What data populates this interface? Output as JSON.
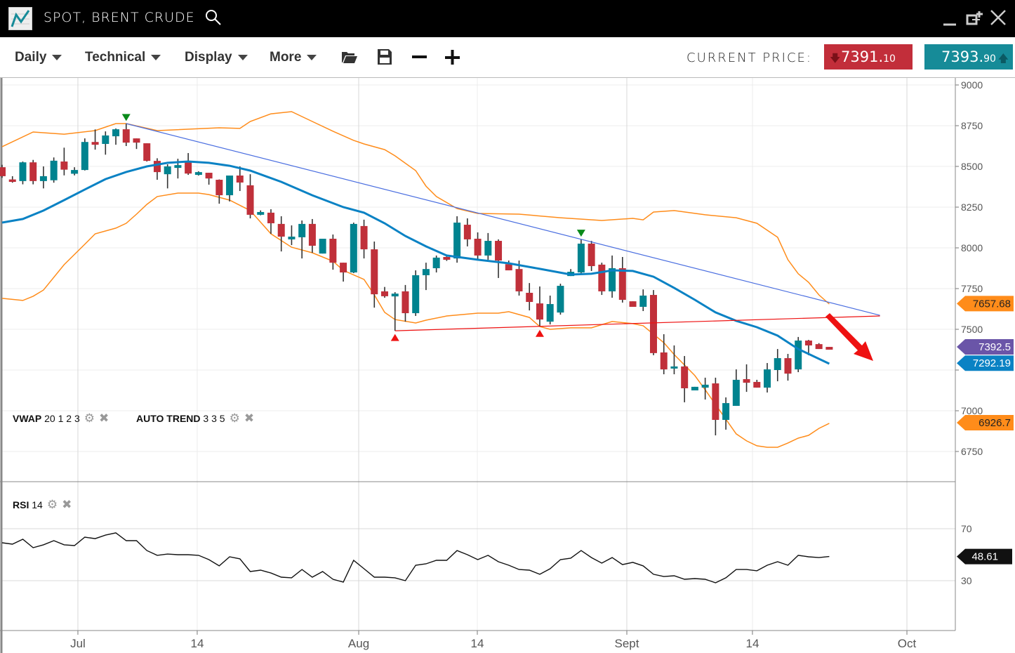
{
  "window": {
    "title": "SPOT, BRENT CRUDE",
    "icons": [
      "chart-logo-icon",
      "search-icon",
      "minimize-icon",
      "popout-icon",
      "close-icon"
    ]
  },
  "toolbar": {
    "menus": [
      {
        "label": "Daily"
      },
      {
        "label": "Technical"
      },
      {
        "label": "Display"
      },
      {
        "label": "More"
      }
    ],
    "icons": [
      "folder-open-icon",
      "save-icon",
      "zoom-out-icon",
      "zoom-in-icon"
    ],
    "current_price_label": "CURRENT PRICE:",
    "bid": {
      "main": "7391.",
      "decimals": "10",
      "direction": "down",
      "color": "#c22e3a"
    },
    "ask": {
      "main": "7393.",
      "decimals": "90",
      "direction": "up",
      "color": "#168b98"
    }
  },
  "legends": {
    "vwap": {
      "name": "VWAP",
      "params": "20 1 2 3"
    },
    "auto_trend": {
      "name": "AUTO TREND",
      "params": "3 3 5"
    },
    "rsi": {
      "name": "RSI",
      "params": "14"
    }
  },
  "chart_data": [
    {
      "type": "candlestick",
      "y_ticks": [
        "9000",
        "8750",
        "8500",
        "8250",
        "8000",
        "7750",
        "7500",
        "7250",
        "7000",
        "6750"
      ],
      "ylim": [
        6750,
        9000
      ],
      "x_ticks": [
        "Jul",
        "14",
        "Aug",
        "14",
        "Sept",
        "14",
        "Oct"
      ],
      "grid": true,
      "colors": {
        "up": "#00838f",
        "down": "#c0303a",
        "vwap": "#0a82c4",
        "bands": "#ff8c1a",
        "trend_resistance": "#4a6ee0",
        "trend_support": "#ee1111"
      },
      "candles_ohlc": [
        [
          8495,
          8510,
          8430,
          8440
        ],
        [
          8420,
          8440,
          8400,
          8405
        ],
        [
          8410,
          8530,
          8390,
          8525
        ],
        [
          8525,
          8540,
          8390,
          8410
        ],
        [
          8410,
          8500,
          8365,
          8440
        ],
        [
          8415,
          8555,
          8400,
          8535
        ],
        [
          8530,
          8615,
          8445,
          8480
        ],
        [
          8455,
          8495,
          8445,
          8478
        ],
        [
          8478,
          8672,
          8475,
          8650
        ],
        [
          8650,
          8727,
          8603,
          8633
        ],
        [
          8638,
          8715,
          8572,
          8690
        ],
        [
          8685,
          8733,
          8633,
          8728
        ],
        [
          8728,
          8763,
          8625,
          8646
        ],
        [
          8672,
          8672,
          8607,
          8646
        ],
        [
          8642,
          8642,
          8530,
          8534
        ],
        [
          8534,
          8550,
          8418,
          8465
        ],
        [
          8452,
          8513,
          8365,
          8500
        ],
        [
          8491,
          8547,
          8426,
          8508
        ],
        [
          8525,
          8582,
          8448,
          8456
        ],
        [
          8448,
          8470,
          8444,
          8465
        ],
        [
          8461,
          8461,
          8388,
          8426
        ],
        [
          8418,
          8420,
          8271,
          8323
        ],
        [
          8323,
          8444,
          8285,
          8444
        ],
        [
          8444,
          8500,
          8349,
          8401
        ],
        [
          8384,
          8452,
          8181,
          8203
        ],
        [
          8203,
          8230,
          8200,
          8220
        ],
        [
          8216,
          8237,
          8086,
          8151
        ],
        [
          8147,
          8194,
          7978,
          8069
        ],
        [
          8052,
          8138,
          8017,
          8069
        ],
        [
          8065,
          8168,
          7935,
          8147
        ],
        [
          8147,
          8177,
          7970,
          8013
        ],
        [
          7965,
          8056,
          7965,
          8056
        ],
        [
          8056,
          8082,
          7866,
          7909
        ],
        [
          7909,
          7909,
          7793,
          7849
        ],
        [
          7849,
          8155,
          7845,
          8147
        ],
        [
          8134,
          8173,
          7935,
          7991
        ],
        [
          7991,
          8039,
          7633,
          7715
        ],
        [
          7733,
          7760,
          7694,
          7703
        ],
        [
          7702,
          7728,
          7491,
          7719
        ],
        [
          7733,
          7772,
          7547,
          7599
        ],
        [
          7599,
          7862,
          7582,
          7832
        ],
        [
          7832,
          7909,
          7741,
          7870
        ],
        [
          7875,
          7953,
          7849,
          7940
        ],
        [
          7944,
          7952,
          7920,
          7927
        ],
        [
          7935,
          8194,
          7909,
          8155
        ],
        [
          8142,
          8181,
          8009,
          8052
        ],
        [
          8056,
          8095,
          7927,
          7953
        ],
        [
          7953,
          8091,
          7927,
          8043
        ],
        [
          8043,
          8052,
          7815,
          7922
        ],
        [
          7900,
          7922,
          7862,
          7862
        ],
        [
          7870,
          7922,
          7707,
          7733
        ],
        [
          7724,
          7784,
          7616,
          7668
        ],
        [
          7659,
          7763,
          7517,
          7560
        ],
        [
          7547,
          7707,
          7530,
          7655
        ],
        [
          7603,
          7780,
          7590,
          7767
        ],
        [
          7827,
          7870,
          7827,
          7853
        ],
        [
          7849,
          8052,
          7836,
          8026
        ],
        [
          8026,
          8043,
          7858,
          7888
        ],
        [
          7897,
          7909,
          7711,
          7733
        ],
        [
          7733,
          7953,
          7694,
          7875
        ],
        [
          7875,
          7944,
          7664,
          7681
        ],
        [
          7672,
          7672,
          7638,
          7638
        ],
        [
          7638,
          7745,
          7612,
          7707
        ],
        [
          7711,
          7741,
          7341,
          7354
        ],
        [
          7358,
          7470,
          7224,
          7254
        ],
        [
          7259,
          7401,
          7224,
          7272
        ],
        [
          7272,
          7336,
          7052,
          7138
        ],
        [
          7125,
          7147,
          7125,
          7147
        ],
        [
          7142,
          7203,
          7069,
          7160
        ],
        [
          7168,
          7203,
          6849,
          6944
        ],
        [
          6944,
          7082,
          6884,
          7047
        ],
        [
          7030,
          7254,
          7030,
          7190
        ],
        [
          7194,
          7285,
          7116,
          7172
        ],
        [
          7177,
          7190,
          7142,
          7142
        ],
        [
          7142,
          7293,
          7112,
          7254
        ],
        [
          7250,
          7379,
          7181,
          7323
        ],
        [
          7323,
          7349,
          7185,
          7228
        ],
        [
          7254,
          7453,
          7237,
          7431
        ],
        [
          7431,
          7435,
          7341,
          7401
        ],
        [
          7409,
          7415,
          7379,
          7379
        ],
        [
          7392,
          7392,
          7375,
          7375
        ]
      ],
      "upper_band": [
        [
          0,
          8621
        ],
        [
          3,
          8711
        ],
        [
          6,
          8698
        ],
        [
          9,
          8720
        ],
        [
          11,
          8763
        ],
        [
          12,
          8763
        ],
        [
          15,
          8720
        ],
        [
          21,
          8737
        ],
        [
          23,
          8733
        ],
        [
          24,
          8776
        ],
        [
          26,
          8823
        ],
        [
          28,
          8836
        ],
        [
          30,
          8776
        ],
        [
          32,
          8716
        ],
        [
          34,
          8660
        ],
        [
          35,
          8638
        ],
        [
          37,
          8603
        ],
        [
          38,
          8565
        ],
        [
          40,
          8474
        ],
        [
          41,
          8379
        ],
        [
          42,
          8315
        ],
        [
          44,
          8241
        ],
        [
          46,
          8211
        ],
        [
          50,
          8207
        ],
        [
          54,
          8185
        ],
        [
          58,
          8168
        ],
        [
          61,
          8181
        ],
        [
          62,
          8172
        ],
        [
          63,
          8220
        ],
        [
          65,
          8229
        ],
        [
          68,
          8203
        ],
        [
          71,
          8185
        ],
        [
          73,
          8151
        ],
        [
          75,
          8065
        ],
        [
          76,
          7927
        ],
        [
          77,
          7841
        ],
        [
          78,
          7789
        ],
        [
          79,
          7711
        ],
        [
          80,
          7655
        ]
      ],
      "lower_band": [
        [
          0,
          7690
        ],
        [
          2,
          7677
        ],
        [
          3,
          7703
        ],
        [
          4,
          7741
        ],
        [
          6,
          7897
        ],
        [
          8,
          8022
        ],
        [
          9,
          8086
        ],
        [
          11,
          8121
        ],
        [
          12,
          8151
        ],
        [
          13,
          8207
        ],
        [
          14,
          8267
        ],
        [
          15,
          8315
        ],
        [
          17,
          8336
        ],
        [
          19,
          8336
        ],
        [
          20,
          8327
        ],
        [
          22,
          8293
        ],
        [
          24,
          8229
        ],
        [
          26,
          8086
        ],
        [
          28,
          8004
        ],
        [
          30,
          7970
        ],
        [
          32,
          7918
        ],
        [
          33,
          7862
        ],
        [
          35,
          7806
        ],
        [
          36,
          7711
        ],
        [
          37,
          7604
        ],
        [
          38,
          7560
        ],
        [
          40,
          7539
        ],
        [
          41,
          7556
        ],
        [
          43,
          7582
        ],
        [
          46,
          7599
        ],
        [
          48,
          7599
        ],
        [
          49,
          7608
        ],
        [
          51,
          7573
        ],
        [
          52,
          7517
        ],
        [
          53,
          7500
        ],
        [
          55,
          7509
        ],
        [
          57,
          7509
        ],
        [
          59,
          7548
        ],
        [
          61,
          7535
        ],
        [
          62,
          7522
        ],
        [
          64,
          7418
        ],
        [
          65,
          7345
        ],
        [
          67,
          7216
        ],
        [
          68,
          7129
        ],
        [
          70,
          6948
        ],
        [
          71,
          6858
        ],
        [
          72,
          6815
        ],
        [
          73,
          6785
        ],
        [
          74,
          6776
        ],
        [
          75,
          6776
        ],
        [
          76,
          6802
        ],
        [
          77,
          6832
        ],
        [
          78,
          6849
        ],
        [
          79,
          6892
        ],
        [
          80,
          6923
        ]
      ],
      "vwap": [
        [
          0,
          8155
        ],
        [
          2,
          8177
        ],
        [
          4,
          8229
        ],
        [
          6,
          8293
        ],
        [
          8,
          8358
        ],
        [
          10,
          8422
        ],
        [
          12,
          8466
        ],
        [
          14,
          8500
        ],
        [
          16,
          8522
        ],
        [
          18,
          8530
        ],
        [
          20,
          8522
        ],
        [
          22,
          8504
        ],
        [
          24,
          8474
        ],
        [
          27,
          8405
        ],
        [
          30,
          8323
        ],
        [
          33,
          8250
        ],
        [
          35,
          8216
        ],
        [
          37,
          8151
        ],
        [
          39,
          8073
        ],
        [
          41,
          8009
        ],
        [
          43,
          7953
        ],
        [
          46,
          7927
        ],
        [
          49,
          7905
        ],
        [
          52,
          7871
        ],
        [
          55,
          7836
        ],
        [
          57,
          7841
        ],
        [
          59,
          7862
        ],
        [
          61,
          7858
        ],
        [
          63,
          7823
        ],
        [
          65,
          7754
        ],
        [
          67,
          7681
        ],
        [
          69,
          7604
        ],
        [
          71,
          7552
        ],
        [
          73,
          7513
        ],
        [
          75,
          7461
        ],
        [
          77,
          7379
        ],
        [
          80,
          7289
        ]
      ],
      "trend_lines": [
        {
          "kind": "resistance",
          "from": [
            12,
            8763
          ],
          "to": [
            84.9,
            7586
          ]
        },
        {
          "kind": "support",
          "from": [
            38,
            7491
          ],
          "to": [
            84.9,
            7582
          ]
        }
      ],
      "pivot_markers": [
        {
          "kind": "high",
          "index": 12,
          "price": 8800
        },
        {
          "kind": "high",
          "index": 56,
          "price": 8090
        },
        {
          "kind": "low",
          "index": 38,
          "price": 7450
        },
        {
          "kind": "low",
          "index": 52,
          "price": 7475
        }
      ],
      "forecast_arrow": {
        "direction": "down",
        "color": "#ee1111"
      },
      "price_tags": [
        {
          "label": "7657.68",
          "value": 7657.68,
          "color": "#ff8c1a",
          "text_color": "#222"
        },
        {
          "label": "7392.5",
          "value": 7392.5,
          "color": "#6a55a8",
          "text_color": "#fff"
        },
        {
          "label": "7292.19",
          "value": 7292.19,
          "color": "#0a82c4",
          "text_color": "#fff"
        },
        {
          "label": "6926.7",
          "value": 6926.7,
          "color": "#ff8c1a",
          "text_color": "#222"
        }
      ]
    },
    {
      "type": "line",
      "name": "RSI",
      "y_ticks": [
        "70",
        "30"
      ],
      "values": [
        59.2,
        58.1,
        61.9,
        55.4,
        57.6,
        60.8,
        57.6,
        57.0,
        63.5,
        62.4,
        65.1,
        66.8,
        60.8,
        60.8,
        53.2,
        49.5,
        50.5,
        50.0,
        50.0,
        49.5,
        46.2,
        41.4,
        48.4,
        46.8,
        37.0,
        38.1,
        35.9,
        32.7,
        32.2,
        38.6,
        32.7,
        37.0,
        31.1,
        28.9,
        45.7,
        39.2,
        32.7,
        32.7,
        32.2,
        30.0,
        41.9,
        43.0,
        45.7,
        45.7,
        53.2,
        50.0,
        46.2,
        49.5,
        44.6,
        41.9,
        38.6,
        38.1,
        34.9,
        39.2,
        46.2,
        47.3,
        53.2,
        47.8,
        43.5,
        47.8,
        42.4,
        44.1,
        41.4,
        34.9,
        33.2,
        33.8,
        31.1,
        31.6,
        31.1,
        28.4,
        32.2,
        38.6,
        38.6,
        37.6,
        41.9,
        44.6,
        41.9,
        49.5,
        48.4,
        47.8,
        48.61
      ],
      "last_tag": {
        "label": "48.61",
        "color": "#111"
      }
    }
  ]
}
